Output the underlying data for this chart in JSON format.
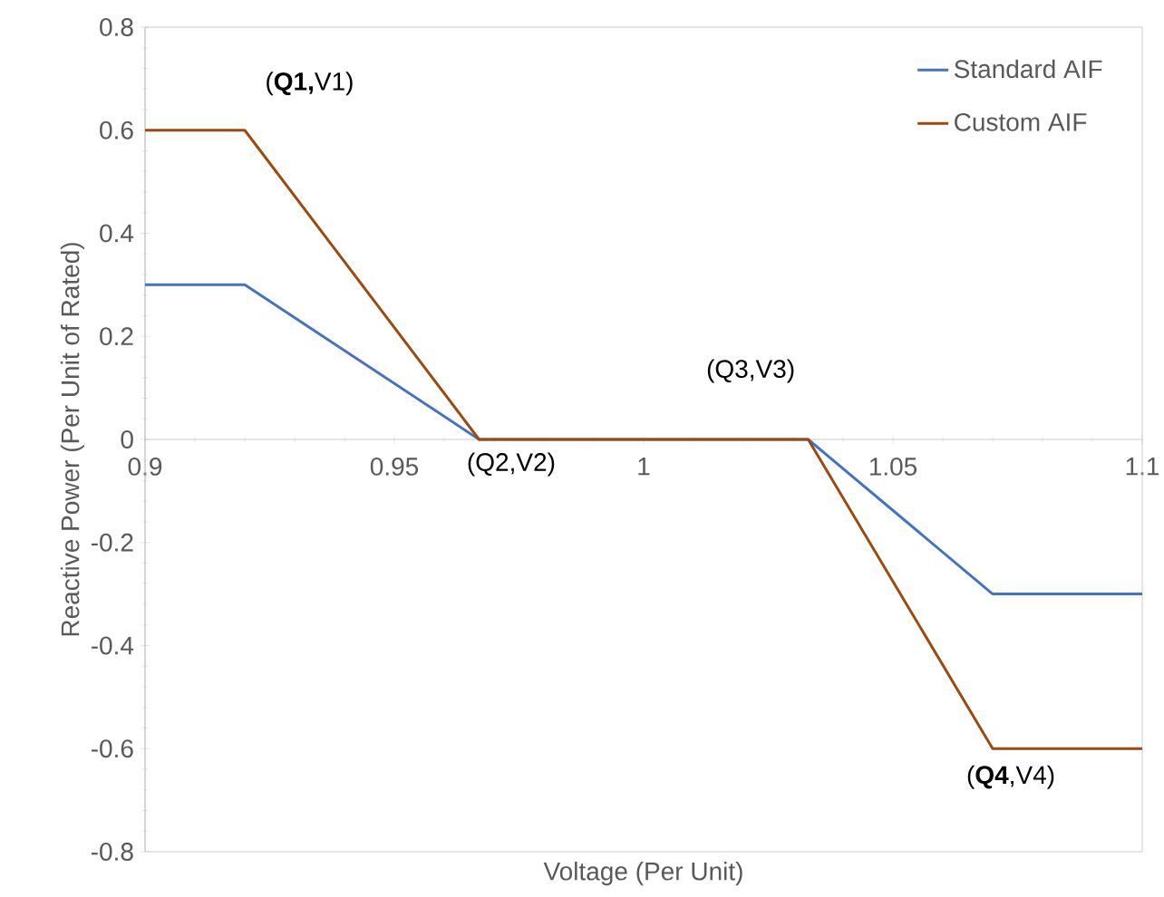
{
  "chart_data": {
    "type": "line",
    "xlabel": "Voltage (Per Unit)",
    "ylabel": "Reactive Power (Per Unit of Rated)",
    "xlim": [
      0.9,
      1.1
    ],
    "xticks": [
      0.9,
      0.95,
      1,
      1.05,
      1.1
    ],
    "ylim": [
      -0.8,
      0.8
    ],
    "yticks": [
      -0.8,
      -0.6,
      -0.4,
      -0.2,
      0,
      0.2,
      0.4,
      0.6,
      0.8
    ],
    "grid": false,
    "legend": "top right",
    "marker": "none",
    "line_style": "solid",
    "series": [
      {
        "name": "Standard AIF",
        "color": "#4472c4",
        "x": [
          0.9,
          0.92,
          0.967,
          1.033,
          1.07,
          1.1
        ],
        "values": [
          0.3,
          0.3,
          0,
          0,
          -0.3,
          -0.3
        ]
      },
      {
        "name": "Custom AIF",
        "color": "#9c4a0f",
        "x": [
          0.9,
          0.92,
          0.967,
          1.033,
          1.07,
          1.1
        ],
        "values": [
          0.6,
          0.6,
          0,
          0,
          -0.6,
          -0.6
        ]
      }
    ],
    "annotations": [
      {
        "text": "(**Q1,**V1)",
        "x": 0.92,
        "y": 0.6
      },
      {
        "text": "(Q2,V2)",
        "x": 0.967,
        "y": 0
      },
      {
        "text": "(Q3,V3)",
        "x": 1.033,
        "y": 0
      },
      {
        "text": "(**Q4**,V4)",
        "x": 1.07,
        "y": -0.6
      }
    ]
  }
}
